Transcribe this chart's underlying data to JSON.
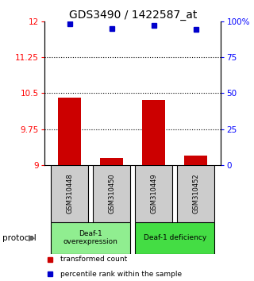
{
  "title": "GDS3490 / 1422587_at",
  "samples": [
    "GSM310448",
    "GSM310450",
    "GSM310449",
    "GSM310452"
  ],
  "bar_values": [
    10.4,
    9.15,
    10.35,
    9.2
  ],
  "percentile_values": [
    98,
    95,
    97,
    94
  ],
  "ylim_left": [
    9,
    12
  ],
  "ylim_right": [
    0,
    100
  ],
  "yticks_left": [
    9,
    9.75,
    10.5,
    11.25,
    12
  ],
  "ytick_labels_left": [
    "9",
    "9.75",
    "10.5",
    "11.25",
    "12"
  ],
  "yticks_right": [
    0,
    25,
    50,
    75,
    100
  ],
  "ytick_labels_right": [
    "0",
    "25",
    "50",
    "75",
    "100%"
  ],
  "bar_color": "#cc0000",
  "marker_color": "#0000cc",
  "protocol_labels": [
    "Deaf-1\noverexpression",
    "Deaf-1 deficiency"
  ],
  "protocol_color_left": "#90ee90",
  "protocol_color_right": "#44dd44",
  "sample_box_color": "#cccccc",
  "background_color": "#ffffff",
  "title_fontsize": 10,
  "tick_fontsize": 7.5,
  "bar_width": 0.55
}
